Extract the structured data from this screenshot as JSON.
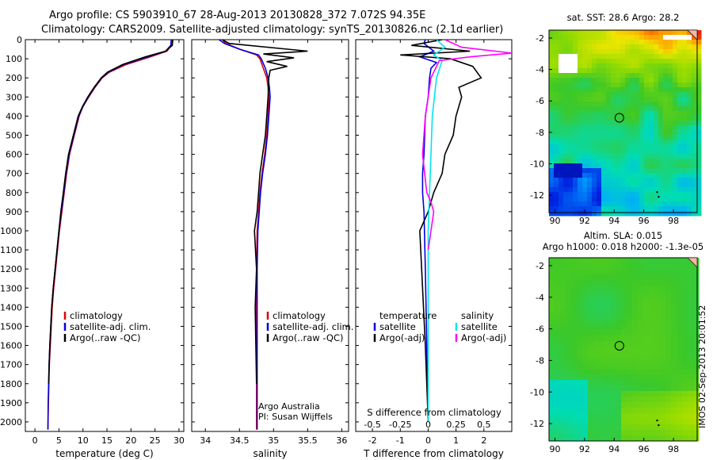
{
  "title": {
    "line1": "Argo profile: CS 5903910_67 28-Aug-2013 20130828_372 7.072S 94.35E",
    "line2": "Climatology: CARS2009. Satellite-adjusted climatology: synTS_20130826.nc (2.1d earlier)"
  },
  "stamp": "IMOS 02-Sep-2013 20:01:52",
  "colors": {
    "climatology": "#e00000",
    "satellite": "#0000e0",
    "argo": "#000000",
    "salinity_satellite": "#00e5ee",
    "salinity_argo": "#ff00ff"
  },
  "chart_data": [
    {
      "id": "temperature",
      "type": "line",
      "xlabel": "temperature (deg C)",
      "xlim": [
        -2,
        31
      ],
      "xticks": [
        0,
        5,
        10,
        15,
        20,
        25,
        30
      ],
      "xticklabels": [
        "0",
        "5",
        "10",
        "15",
        "20",
        "25",
        "30"
      ],
      "ylabel": "",
      "ylim": [
        0,
        2050
      ],
      "yreversed": true,
      "yticks": [
        0,
        100,
        200,
        300,
        400,
        500,
        600,
        700,
        800,
        900,
        1000,
        1100,
        1200,
        1300,
        1400,
        1500,
        1600,
        1700,
        1800,
        1900,
        2000
      ],
      "legend": [
        {
          "label": "climatology",
          "color": "#e00000"
        },
        {
          "label": "satellite-adj. clim.",
          "color": "#0000e0"
        },
        {
          "label": "Argo(..raw -QC)",
          "color": "#000000"
        }
      ],
      "series": [
        {
          "name": "climatology",
          "color": "#e00000",
          "x": [
            28.5,
            28.4,
            27.5,
            24,
            19,
            15.5,
            14,
            12.5,
            11.2,
            10,
            9.2,
            8.2,
            7.2,
            6.6,
            6.1,
            5.6,
            5.1,
            4.7,
            4.3,
            3.9,
            3.6,
            3.4,
            3.2,
            3.0,
            2.9,
            2.8,
            2.7
          ],
          "y": [
            0,
            30,
            60,
            90,
            130,
            170,
            200,
            250,
            300,
            350,
            400,
            500,
            600,
            700,
            800,
            900,
            1000,
            1100,
            1200,
            1300,
            1400,
            1500,
            1600,
            1700,
            1800,
            1900,
            2040
          ]
        },
        {
          "name": "satellite-adj. clim.",
          "color": "#0000e0",
          "x": [
            28.4,
            28.3,
            27.2,
            23.5,
            18.5,
            15.3,
            13.9,
            12.4,
            11.1,
            10,
            9.1,
            8.1,
            7.1,
            6.5,
            6.0,
            5.5,
            5.0,
            4.6,
            4.2,
            3.8,
            3.5,
            3.3,
            3.1,
            2.95,
            2.85,
            2.75,
            2.7
          ],
          "y": [
            0,
            30,
            60,
            90,
            130,
            170,
            200,
            250,
            300,
            350,
            400,
            500,
            600,
            700,
            800,
            900,
            1000,
            1100,
            1200,
            1300,
            1400,
            1500,
            1600,
            1700,
            1800,
            1900,
            2040
          ]
        },
        {
          "name": "Argo(..raw -QC)",
          "color": "#000000",
          "x": [
            28.7,
            28.6,
            27.2,
            23.0,
            18.3,
            15.1,
            13.8,
            12.3,
            11.0,
            9.9,
            9.0,
            8.0,
            7.0,
            6.4,
            5.9,
            5.4,
            5.0,
            4.6,
            4.2,
            3.8,
            3.5,
            3.3,
            3.1,
            2.95,
            2.85
          ],
          "y": [
            0,
            30,
            60,
            90,
            130,
            170,
            200,
            250,
            300,
            350,
            400,
            500,
            600,
            700,
            800,
            900,
            1000,
            1100,
            1200,
            1300,
            1400,
            1500,
            1600,
            1700,
            1800
          ]
        }
      ]
    },
    {
      "id": "salinity",
      "type": "line",
      "xlabel": "salinity",
      "xlim": [
        33.8,
        36.1
      ],
      "xticks": [
        34,
        34.5,
        35,
        35.5,
        36
      ],
      "xticklabels": [
        "34",
        "34.5",
        "35",
        "35.5",
        "36"
      ],
      "ylim": [
        0,
        2050
      ],
      "yreversed": true,
      "annotation": [
        "Argo Australia",
        "PI: Susan Wijffels"
      ],
      "legend": [
        {
          "label": "climatology",
          "color": "#e00000"
        },
        {
          "label": "satellite-adj. clim.",
          "color": "#0000e0"
        },
        {
          "label": "Argo(..raw -QC)",
          "color": "#000000"
        }
      ],
      "series": [
        {
          "name": "climatology",
          "color": "#e00000",
          "x": [
            34.25,
            34.3,
            34.5,
            34.75,
            34.8,
            34.85,
            34.9,
            34.92,
            34.93,
            34.92,
            34.9,
            34.87,
            34.83,
            34.8,
            34.78,
            34.76,
            34.75,
            34.75,
            34.75,
            34.75,
            34.75
          ],
          "y": [
            0,
            20,
            50,
            80,
            100,
            150,
            200,
            250,
            300,
            400,
            500,
            600,
            700,
            800,
            900,
            1000,
            1200,
            1400,
            1600,
            1800,
            2040
          ]
        },
        {
          "name": "satellite-adj. clim.",
          "color": "#0000e0",
          "x": [
            34.2,
            34.28,
            34.5,
            34.78,
            34.82,
            34.88,
            34.92,
            34.94,
            34.95,
            34.93,
            34.91,
            34.88,
            34.84,
            34.81,
            34.79,
            34.77,
            34.76,
            34.76,
            34.76,
            34.76,
            34.76
          ],
          "y": [
            0,
            20,
            50,
            80,
            100,
            150,
            200,
            250,
            300,
            400,
            500,
            600,
            700,
            800,
            900,
            1000,
            1200,
            1400,
            1600,
            1800,
            2040
          ]
        },
        {
          "name": "Argo(..raw -QC)",
          "color": "#000000",
          "x": [
            34.25,
            34.35,
            35.5,
            34.85,
            35.3,
            34.9,
            35.2,
            34.95,
            34.93,
            34.92,
            34.9,
            34.88,
            34.84,
            34.8,
            34.78,
            34.76,
            34.72,
            34.75,
            34.73,
            34.75
          ],
          "y": [
            0,
            20,
            60,
            75,
            95,
            115,
            140,
            160,
            200,
            300,
            400,
            500,
            600,
            700,
            800,
            900,
            1000,
            1200,
            1400,
            1800
          ]
        }
      ]
    },
    {
      "id": "difference",
      "type": "line",
      "xlabel": "T difference from climatology",
      "xlabel_top": "S difference from climatology",
      "xlim": [
        -2.6,
        3.0
      ],
      "xticks": [
        -2,
        -1,
        0,
        1,
        2
      ],
      "xticklabels": [
        "-2",
        "-1",
        "0",
        "1",
        "2"
      ],
      "s_ticklabels": [
        "-0.5",
        "-0.25",
        "0",
        "0.25",
        "0.5"
      ],
      "ylim": [
        0,
        2050
      ],
      "yreversed": true,
      "legend_temperature": [
        {
          "label": "temperature",
          "color": null
        },
        {
          "label": "satellite",
          "color": "#0000e0"
        },
        {
          "label": "Argo(-adj)",
          "color": "#000000"
        }
      ],
      "legend_salinity": [
        {
          "label": "salinity",
          "color": null
        },
        {
          "label": "satellite",
          "color": "#00e5ee"
        },
        {
          "label": "Argo(-adj)",
          "color": "#ff00ff"
        }
      ],
      "series": [
        {
          "name": "satellite",
          "color": "#0000e0",
          "x": [
            -0.1,
            -0.15,
            0.2,
            -0.3,
            0.3,
            0.1,
            0.05,
            0.0,
            -0.1,
            -0.15,
            -0.2,
            -0.2,
            -0.15,
            -0.1,
            -0.05,
            0.0
          ],
          "y": [
            0,
            20,
            60,
            90,
            120,
            150,
            200,
            300,
            400,
            600,
            700,
            800,
            900,
            1200,
            1600,
            2000
          ]
        },
        {
          "name": "Argo(-adj)",
          "color": "#000000",
          "x": [
            0.5,
            -0.6,
            1.5,
            -1.0,
            0.8,
            1.6,
            1.9,
            1.1,
            1.2,
            1.0,
            0.9,
            0.6,
            0.5,
            0.2,
            0.0,
            -0.3,
            -0.2,
            -0.1,
            0.0
          ],
          "y": [
            0,
            30,
            60,
            80,
            100,
            140,
            200,
            250,
            300,
            400,
            500,
            600,
            700,
            800,
            900,
            1000,
            1300,
            1600,
            2000
          ]
        },
        {
          "name": "satellite",
          "color": "#00e5ee",
          "x": [
            0.3,
            0.6,
            0.2,
            0.5,
            0.3,
            0.15,
            0.1,
            0.05,
            0.0,
            0.0,
            0.0
          ],
          "y": [
            0,
            40,
            80,
            110,
            200,
            400,
            600,
            800,
            1000,
            1500,
            2000
          ]
        },
        {
          "name": "Argo(-adj)",
          "color": "#ff00ff",
          "x": [
            0.6,
            1.2,
            3.0,
            1.5,
            0.4,
            0.1,
            -0.1,
            -0.2,
            -0.05,
            0.1,
            0.2,
            0.1,
            0.0
          ],
          "y": [
            0,
            40,
            70,
            90,
            110,
            200,
            400,
            600,
            800,
            850,
            900,
            1000,
            1100
          ]
        }
      ]
    },
    {
      "id": "sst_map",
      "type": "heatmap",
      "title": "sat. SST: 28.6 Argo: 28.2",
      "xlim": [
        89.6,
        99.6
      ],
      "ylim": [
        -13.1,
        -1.5
      ],
      "xticks": [
        90,
        92,
        94,
        96,
        98
      ],
      "yticks": [
        -2,
        -4,
        -6,
        -8,
        -10,
        -12
      ],
      "marker": {
        "lon": 94.35,
        "lat": -7.072
      },
      "values_note": ""
    },
    {
      "id": "sla_map",
      "type": "heatmap",
      "title_line1": "Altim. SLA: 0.015",
      "title_line2": "Argo h1000: 0.018 h2000: -1.3e-05",
      "xlim": [
        89.6,
        99.6
      ],
      "ylim": [
        -13.1,
        -1.5
      ],
      "xticks": [
        90,
        92,
        94,
        96,
        98
      ],
      "yticks": [
        -2,
        -4,
        -6,
        -8,
        -10,
        -12
      ],
      "marker": {
        "lon": 94.35,
        "lat": -7.072
      }
    }
  ]
}
